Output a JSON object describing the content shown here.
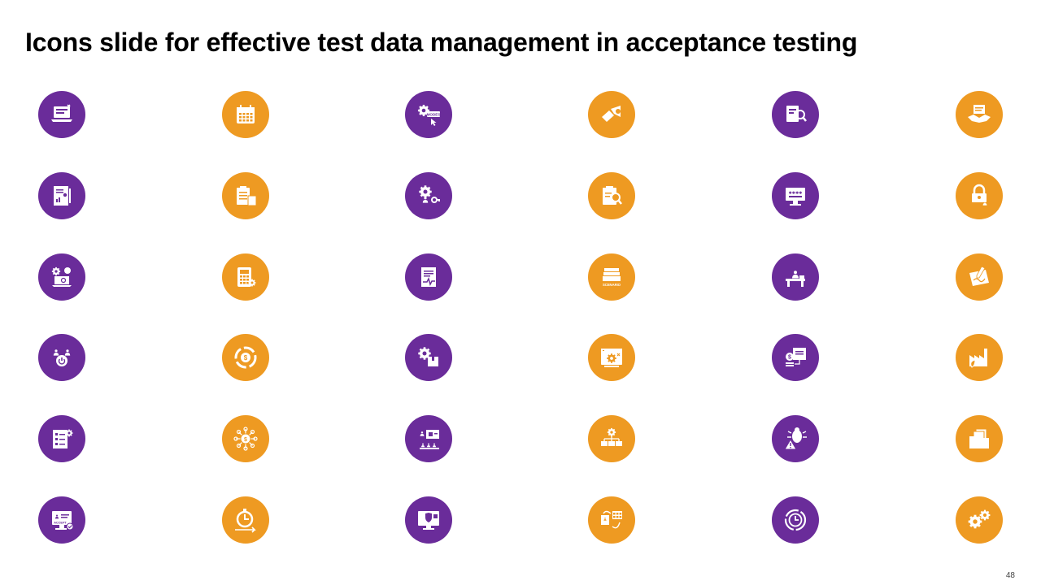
{
  "slide": {
    "title": "Icons slide for effective test data management in acceptance testing",
    "page_number": "48"
  },
  "colors": {
    "purple": "#6A2C9A",
    "orange": "#EE9A22",
    "glyph": "#FFFFFF"
  },
  "icons": [
    {
      "name": "laptop-checklist-icon",
      "color": "purple",
      "glyph": "laptop"
    },
    {
      "name": "calendar-icon",
      "color": "orange",
      "glyph": "calendar"
    },
    {
      "name": "gear-modes-click-icon",
      "color": "purple",
      "glyph": "gearclick",
      "label": "MODES"
    },
    {
      "name": "handshake-megaphone-icon",
      "color": "orange",
      "glyph": "megaphone"
    },
    {
      "name": "document-search-icon",
      "color": "purple",
      "glyph": "docsearch"
    },
    {
      "name": "handshake-document-icon",
      "color": "orange",
      "glyph": "handshake"
    },
    {
      "name": "invoice-chart-icon",
      "color": "purple",
      "glyph": "invoice"
    },
    {
      "name": "clipboard-calculator-icon",
      "color": "orange",
      "glyph": "clipboard"
    },
    {
      "name": "gear-person-key-icon",
      "color": "purple",
      "glyph": "gearkey"
    },
    {
      "name": "clipboard-search-icon",
      "color": "orange",
      "glyph": "clipsearch"
    },
    {
      "name": "monitor-password-icon",
      "color": "purple",
      "glyph": "monitor"
    },
    {
      "name": "padlock-person-icon",
      "color": "orange",
      "glyph": "lock"
    },
    {
      "name": "laptop-gears-globe-icon",
      "color": "purple",
      "glyph": "laptopgear"
    },
    {
      "name": "calculator-gear-icon",
      "color": "orange",
      "glyph": "calculator"
    },
    {
      "name": "document-pulse-icon",
      "color": "purple",
      "glyph": "docpulse"
    },
    {
      "name": "stack-scenario-icon",
      "color": "orange",
      "glyph": "scenario",
      "label": "SCENARIO"
    },
    {
      "name": "person-at-desk-icon",
      "color": "purple",
      "glyph": "desk"
    },
    {
      "name": "contract-signing-icon",
      "color": "orange",
      "glyph": "signing"
    },
    {
      "name": "team-power-icon",
      "color": "purple",
      "glyph": "team"
    },
    {
      "name": "money-cycle-icon",
      "color": "orange",
      "glyph": "cycle"
    },
    {
      "name": "gear-box-icon",
      "color": "purple",
      "glyph": "gearbox"
    },
    {
      "name": "browser-gear-checklist-icon",
      "color": "orange",
      "glyph": "browsergear"
    },
    {
      "name": "money-screen-icon",
      "color": "purple",
      "glyph": "moneyscreen"
    },
    {
      "name": "factory-leaf-icon",
      "color": "orange",
      "glyph": "factory"
    },
    {
      "name": "checklist-gear-icon",
      "color": "purple",
      "glyph": "checklist"
    },
    {
      "name": "money-network-icon",
      "color": "orange",
      "glyph": "network"
    },
    {
      "name": "presentation-audience-icon",
      "color": "purple",
      "glyph": "presentation"
    },
    {
      "name": "hierarchy-gear-icon",
      "color": "orange",
      "glyph": "hierarchy"
    },
    {
      "name": "bug-warning-icon",
      "color": "purple",
      "glyph": "bug"
    },
    {
      "name": "folder-documents-icon",
      "color": "orange",
      "glyph": "folder"
    },
    {
      "name": "monitor-accept-icon",
      "color": "purple",
      "glyph": "accept",
      "label": "ACCEPT"
    },
    {
      "name": "stopwatch-arrow-icon",
      "color": "orange",
      "glyph": "stopwatch"
    },
    {
      "name": "monitor-shield-icon",
      "color": "purple",
      "glyph": "shield"
    },
    {
      "name": "data-transfer-icon",
      "color": "orange",
      "glyph": "transfer"
    },
    {
      "name": "clock-refresh-icon",
      "color": "purple",
      "glyph": "clock"
    },
    {
      "name": "gears-icon",
      "color": "orange",
      "glyph": "gears"
    }
  ]
}
